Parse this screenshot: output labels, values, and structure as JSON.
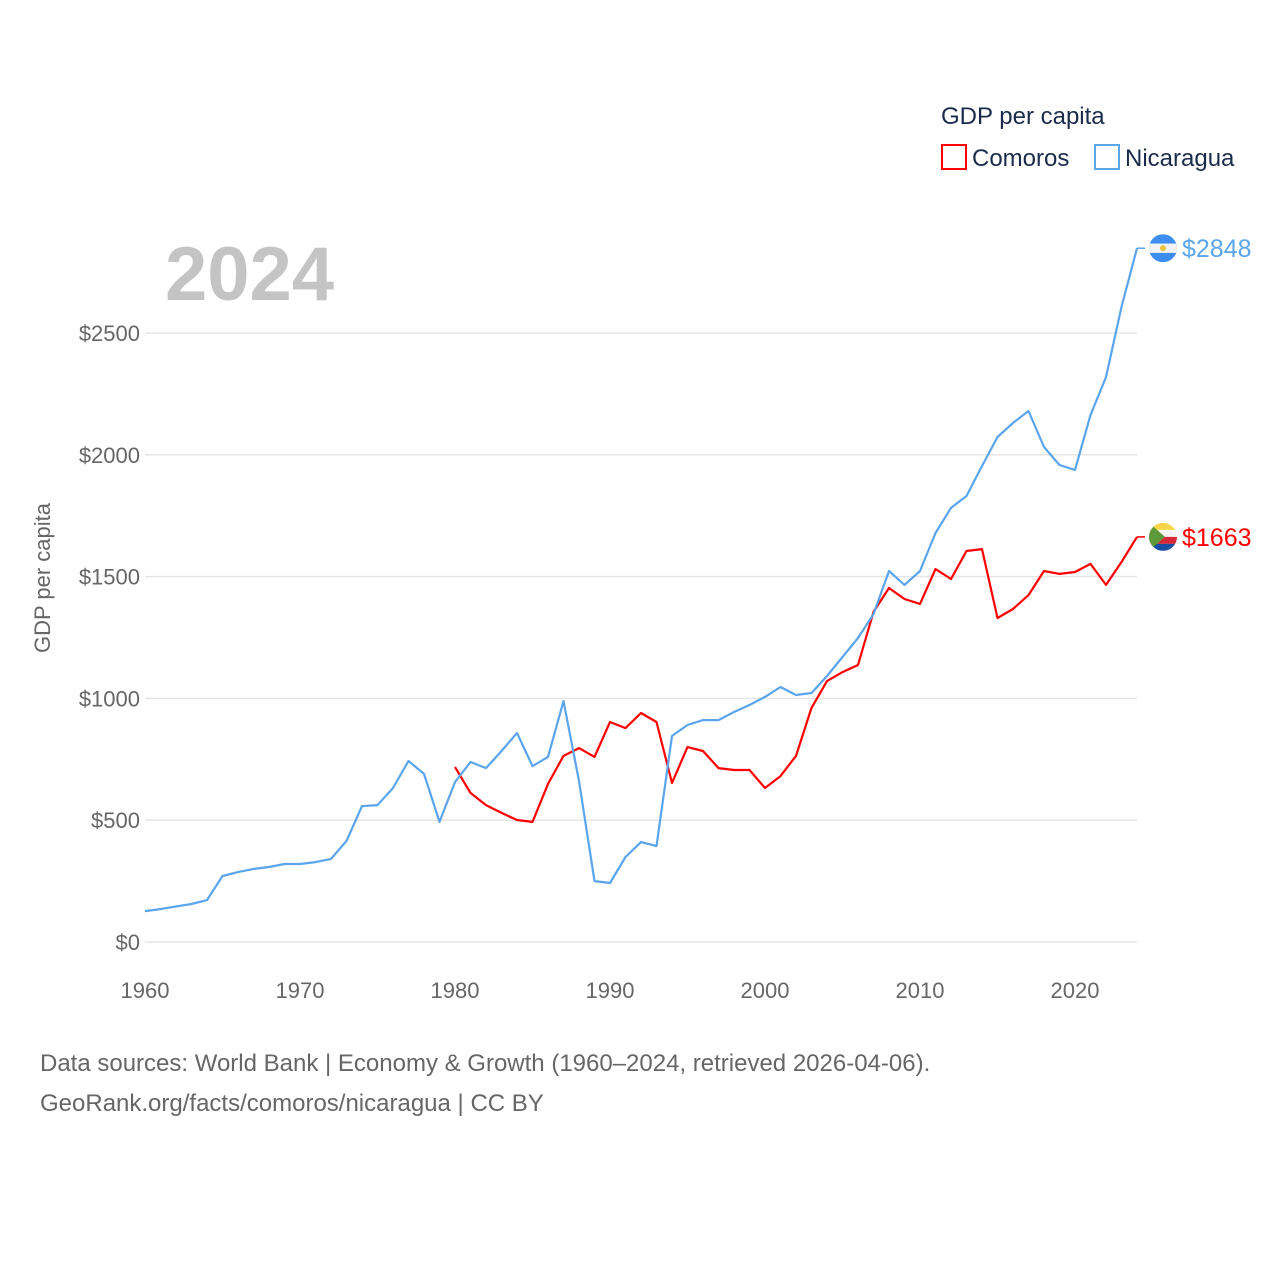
{
  "chart_data": {
    "type": "line",
    "title": "GDP per capita",
    "year_label": "2024",
    "ylabel": "GDP per capita",
    "xlabel": "",
    "xlim": [
      1960,
      2024
    ],
    "ylim": [
      0,
      2848
    ],
    "x_ticks": [
      1960,
      1970,
      1980,
      1990,
      2000,
      2010,
      2020
    ],
    "x_tick_labels": [
      "1960",
      "1970",
      "1980",
      "1990",
      "2000",
      "2010",
      "2020"
    ],
    "y_ticks": [
      0,
      500,
      1000,
      1500,
      2000,
      2500
    ],
    "y_tick_labels": [
      "$0",
      "$500",
      "$1000",
      "$1500",
      "$2000",
      "$2500"
    ],
    "grid": true,
    "legend_placement": "top-right",
    "series": [
      {
        "name": "Comoros",
        "color": "#ff0000",
        "end_label": "$1663",
        "flag": "comoros-flag",
        "x_start": 1980,
        "values": [
          718,
          612,
          562,
          530,
          501,
          493,
          649,
          764,
          796,
          760,
          903,
          878,
          940,
          903,
          653,
          800,
          784,
          714,
          706,
          706,
          632,
          681,
          764,
          961,
          1071,
          1108,
          1137,
          1355,
          1453,
          1408,
          1388,
          1531,
          1490,
          1605,
          1613,
          1330,
          1367,
          1424,
          1523,
          1511,
          1519,
          1552,
          1466,
          1560,
          1663
        ]
      },
      {
        "name": "Nicaragua",
        "color": "#5aa5ec",
        "end_label": "$2848",
        "flag": "nicaragua-flag",
        "x_start": 1960,
        "values": [
          127,
          135,
          146,
          156,
          172,
          271,
          287,
          300,
          308,
          320,
          320,
          328,
          341,
          415,
          558,
          562,
          632,
          743,
          690,
          493,
          657,
          739,
          714,
          784,
          858,
          722,
          760,
          989,
          661,
          250,
          242,
          349,
          410,
          394,
          846,
          891,
          911,
          911,
          944,
          973,
          1006,
          1047,
          1014,
          1022,
          1092,
          1170,
          1248,
          1346,
          1523,
          1466,
          1523,
          1679,
          1782,
          1831,
          1954,
          2073,
          2131,
          2180,
          2032,
          1958,
          1938,
          2163,
          2319,
          2607,
          2848
        ]
      }
    ]
  },
  "footer": {
    "line1": "Data sources: World Bank | Economy & Growth (1960–2024, retrieved 2026-04-06).",
    "line2": "GeoRank.org/facts/comoros/nicaragua | CC BY"
  }
}
